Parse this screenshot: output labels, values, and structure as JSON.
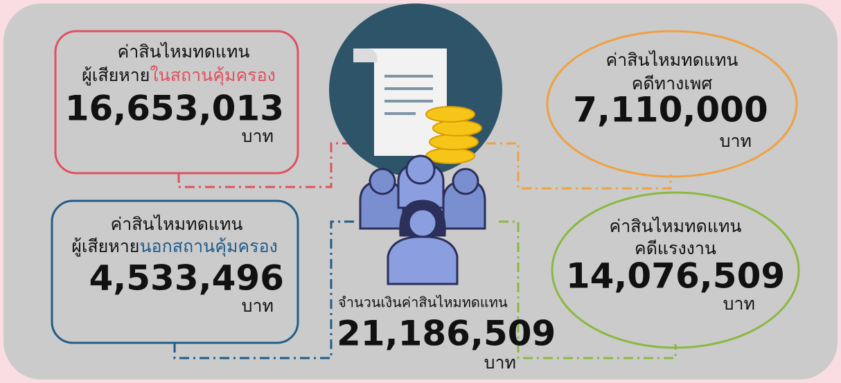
{
  "boxes": [
    {
      "line1": "ค่าสินไหมทดแทน",
      "line2": "ผู้เสียหาย",
      "highlight": "ในสถานคุ้มครอง",
      "amount": "16,653,013",
      "unit": "บาท"
    },
    {
      "line1": "ค่าสินไหมทดแทน",
      "line2": "ผู้เสียหาย",
      "highlight": "นอกสถานคุ้มครอง",
      "amount": "4,533,496",
      "unit": "บาท"
    },
    {
      "line1": "ค่าสินไหมทดแทน",
      "line2": "คดีทางเพศ",
      "amount": "7,110,000",
      "unit": "บาท"
    },
    {
      "line1": "ค่าสินไหมทดแทน",
      "line2": "คดีแรงงาน",
      "amount": "14,076,509",
      "unit": "บาท"
    }
  ],
  "total": {
    "label": "จำนวนเงินค่าสินไหมทดแทน",
    "amount": "21,186,509",
    "unit": "บาท"
  }
}
